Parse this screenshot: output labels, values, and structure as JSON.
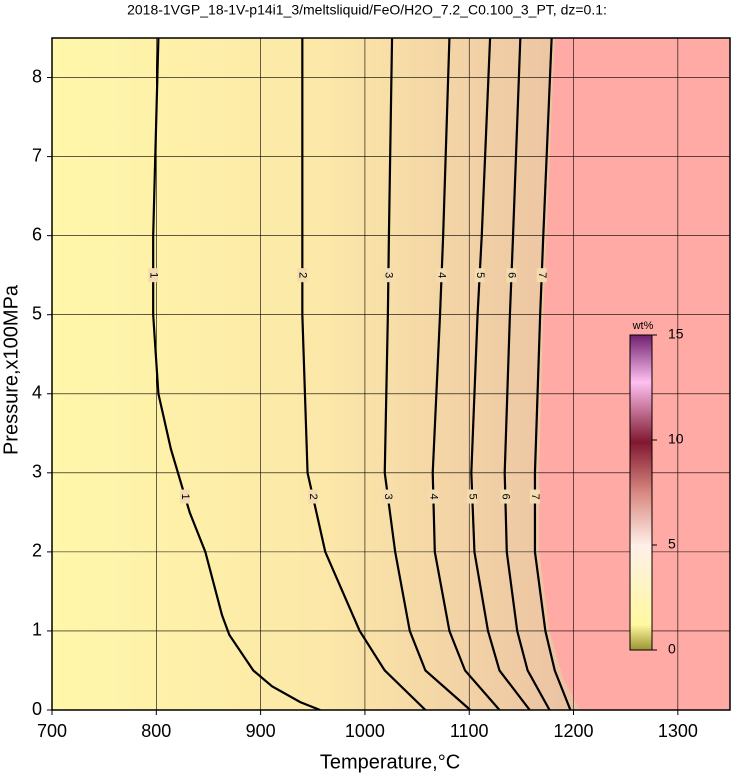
{
  "chart_data": {
    "type": "contour",
    "title": "2018-1VGP_18-1V-p14i1_3/meltsliquid/FeO/H2O_7.2_C0.100_3_PT, dz=0.1:",
    "x_label": "Temperature,°C",
    "y_label": "Pressure,x100MPa",
    "xlim": [
      700,
      1350
    ],
    "ylim": [
      0,
      8.5
    ],
    "xticks": [
      700,
      800,
      900,
      1000,
      1100,
      1200,
      1300
    ],
    "yticks": [
      0,
      1,
      2,
      3,
      4,
      5,
      6,
      7,
      8
    ],
    "grid": true,
    "series": [
      {
        "name": "1",
        "color": "#000000",
        "x": [
          802,
          797,
          797,
          802,
          814,
          832,
          847,
          863,
          870,
          893,
          911,
          938,
          957
        ],
        "y": [
          8.5,
          6,
          5,
          4,
          3.3,
          2.5,
          2,
          1.2,
          0.95,
          0.5,
          0.3,
          0.1,
          0
        ]
      },
      {
        "name": "2",
        "color": "#000000",
        "x": [
          940,
          940,
          940,
          945,
          962,
          995,
          1019,
          1058
        ],
        "y": [
          8.5,
          6,
          5,
          3,
          2,
          1,
          0.5,
          0
        ]
      },
      {
        "name": "3",
        "color": "#000000",
        "x": [
          1026,
          1023,
          1022,
          1019,
          1029,
          1043,
          1058,
          1101
        ],
        "y": [
          8.5,
          6,
          5,
          3,
          2,
          1,
          0.5,
          0
        ]
      },
      {
        "name": "4",
        "color": "#000000",
        "x": [
          1081,
          1075,
          1072,
          1065,
          1067,
          1081,
          1096,
          1129
        ],
        "y": [
          8.5,
          6,
          5,
          3,
          2,
          1,
          0.5,
          0
        ]
      },
      {
        "name": "5",
        "color": "#000000",
        "x": [
          1120,
          1112,
          1108,
          1102,
          1105,
          1118,
          1129,
          1158
        ],
        "y": [
          8.5,
          6,
          5,
          3,
          2,
          1,
          0.5,
          0
        ]
      },
      {
        "name": "6",
        "color": "#000000",
        "x": [
          1149,
          1142,
          1139,
          1134,
          1136,
          1146,
          1156,
          1177
        ],
        "y": [
          8.5,
          6,
          5,
          3,
          2,
          1,
          0.5,
          0
        ]
      },
      {
        "name": "7",
        "color": "#000000",
        "x": [
          1179,
          1171,
          1168,
          1163,
          1163,
          1173,
          1182,
          1197
        ],
        "y": [
          8.5,
          6,
          5,
          3,
          2,
          1,
          0.5,
          0
        ]
      }
    ],
    "region": {
      "color": "#ffaaa5",
      "x": [
        1182,
        1174,
        1171,
        1167,
        1167,
        1177,
        1190,
        1206
      ],
      "y": [
        8.5,
        6,
        5,
        3,
        2,
        1,
        0.4,
        0
      ]
    },
    "colorbar": {
      "label": "wt%",
      "lim": [
        0,
        15
      ],
      "ticks": [
        0,
        5,
        10,
        15
      ]
    }
  }
}
